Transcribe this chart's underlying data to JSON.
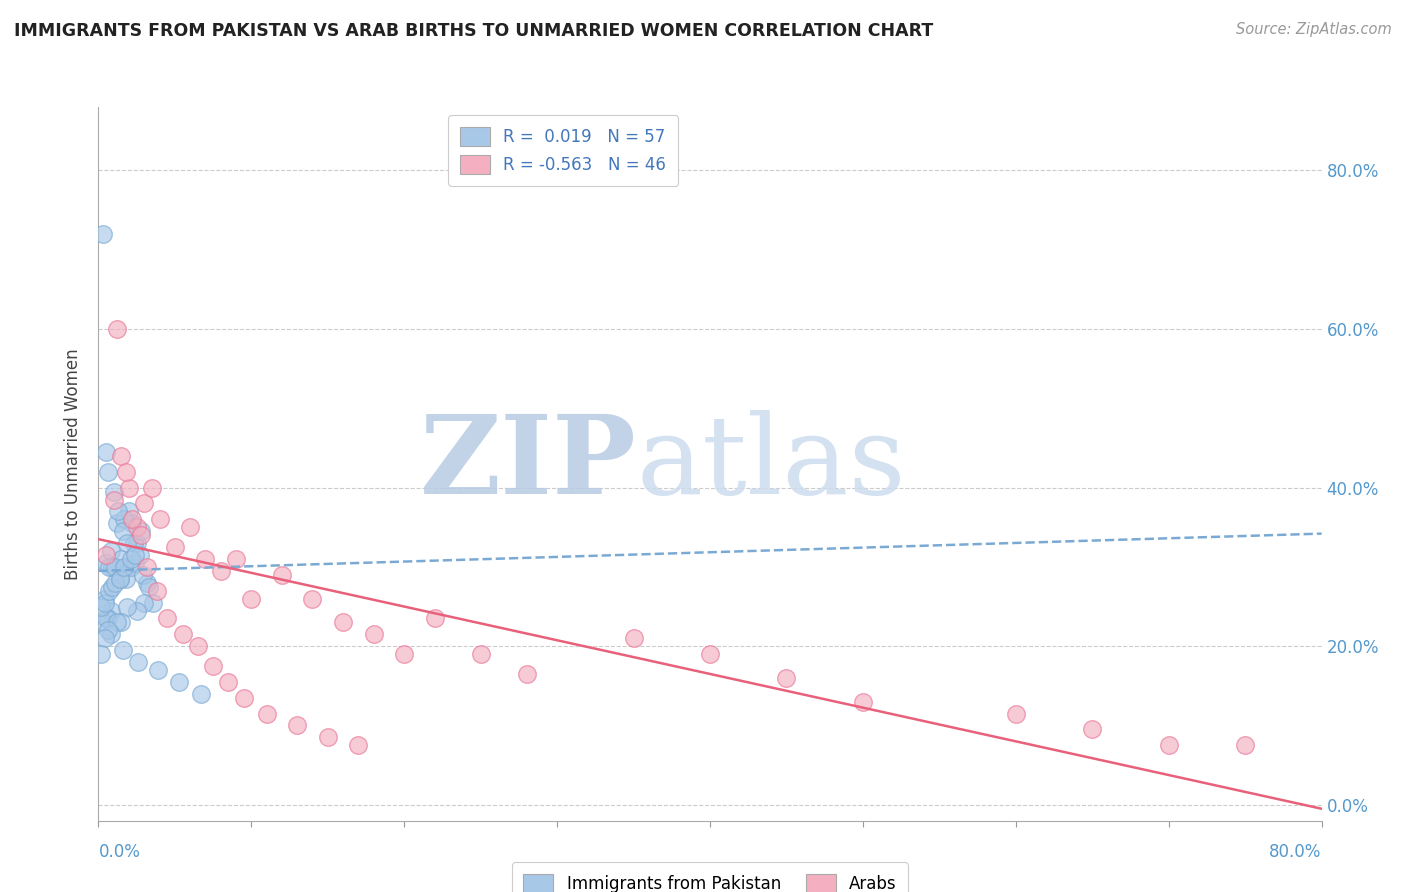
{
  "title": "IMMIGRANTS FROM PAKISTAN VS ARAB BIRTHS TO UNMARRIED WOMEN CORRELATION CHART",
  "source": "Source: ZipAtlas.com",
  "ylabel": "Births to Unmarried Women",
  "ytick_labels": [
    "0.0%",
    "20.0%",
    "40.0%",
    "60.0%",
    "80.0%"
  ],
  "ytick_values": [
    0.0,
    0.2,
    0.4,
    0.6,
    0.8
  ],
  "xrange": [
    0.0,
    0.8
  ],
  "yrange": [
    -0.02,
    0.88
  ],
  "series1_label": "Immigrants from Pakistan",
  "series2_label": "Arabs",
  "series1_color": "#a8c8e8",
  "series2_color": "#f4b0c0",
  "series1_edge": "#7aaad4",
  "series2_edge": "#e87898",
  "trend1_color": "#7aaad4",
  "trend2_color": "#e8607a",
  "legend1_label": "R =  0.019   N = 57",
  "legend2_label": "R = -0.563   N = 46",
  "legend1_patch_color": "#a8c8e8",
  "legend2_patch_color": "#f4b0c0",
  "watermark_zip_color": "#b8cce4",
  "watermark_atlas_color": "#ccdcee",
  "pakistan_x": [
    0.005,
    0.008,
    0.003,
    0.012,
    0.015,
    0.018,
    0.022,
    0.025,
    0.01,
    0.006,
    0.02,
    0.017,
    0.023,
    0.028,
    0.013,
    0.016,
    0.019,
    0.009,
    0.007,
    0.011,
    0.004,
    0.014,
    0.021,
    0.024,
    0.027,
    0.032,
    0.008,
    0.006,
    0.003,
    0.005,
    0.002,
    0.004,
    0.007,
    0.009,
    0.011,
    0.014,
    0.017,
    0.021,
    0.024,
    0.029,
    0.033,
    0.036,
    0.03,
    0.025,
    0.019,
    0.015,
    0.012,
    0.008,
    0.006,
    0.004,
    0.002,
    0.016,
    0.026,
    0.039,
    0.053,
    0.067,
    0.005
  ],
  "pakistan_y": [
    0.305,
    0.32,
    0.72,
    0.355,
    0.31,
    0.285,
    0.355,
    0.33,
    0.395,
    0.42,
    0.37,
    0.36,
    0.33,
    0.345,
    0.37,
    0.345,
    0.33,
    0.3,
    0.3,
    0.3,
    0.26,
    0.285,
    0.3,
    0.305,
    0.315,
    0.28,
    0.245,
    0.235,
    0.23,
    0.235,
    0.25,
    0.255,
    0.27,
    0.275,
    0.28,
    0.285,
    0.3,
    0.31,
    0.315,
    0.29,
    0.275,
    0.255,
    0.255,
    0.245,
    0.25,
    0.23,
    0.23,
    0.215,
    0.22,
    0.21,
    0.19,
    0.195,
    0.18,
    0.17,
    0.155,
    0.14,
    0.445
  ],
  "arab_x": [
    0.005,
    0.01,
    0.015,
    0.02,
    0.025,
    0.03,
    0.035,
    0.04,
    0.05,
    0.06,
    0.07,
    0.08,
    0.09,
    0.1,
    0.12,
    0.14,
    0.16,
    0.18,
    0.2,
    0.22,
    0.25,
    0.28,
    0.35,
    0.4,
    0.45,
    0.5,
    0.012,
    0.018,
    0.022,
    0.028,
    0.032,
    0.038,
    0.045,
    0.055,
    0.065,
    0.075,
    0.085,
    0.095,
    0.11,
    0.13,
    0.15,
    0.17,
    0.6,
    0.65,
    0.7,
    0.75
  ],
  "arab_y": [
    0.315,
    0.385,
    0.44,
    0.4,
    0.35,
    0.38,
    0.4,
    0.36,
    0.325,
    0.35,
    0.31,
    0.295,
    0.31,
    0.26,
    0.29,
    0.26,
    0.23,
    0.215,
    0.19,
    0.235,
    0.19,
    0.165,
    0.21,
    0.19,
    0.16,
    0.13,
    0.6,
    0.42,
    0.36,
    0.34,
    0.3,
    0.27,
    0.235,
    0.215,
    0.2,
    0.175,
    0.155,
    0.135,
    0.115,
    0.1,
    0.085,
    0.075,
    0.115,
    0.095,
    0.075,
    0.075
  ],
  "trend1_x": [
    0.0,
    0.8
  ],
  "trend1_y": [
    0.295,
    0.342
  ],
  "trend2_x": [
    0.0,
    0.8
  ],
  "trend2_y": [
    0.335,
    -0.005
  ]
}
